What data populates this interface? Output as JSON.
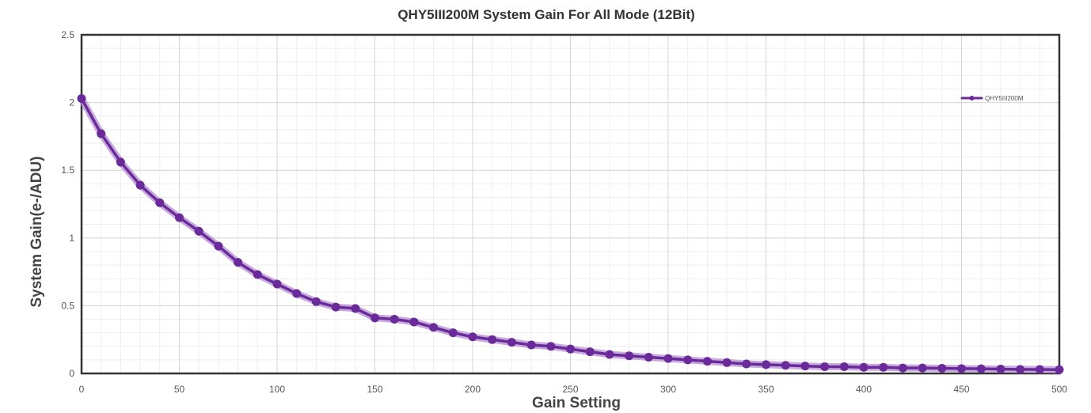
{
  "chart_data": {
    "type": "line",
    "title": "QHY5III200M System Gain For All Mode (12Bit)",
    "xlabel": "Gain Setting",
    "ylabel": "System Gain(e-/ADU)",
    "xlim": [
      0,
      500
    ],
    "ylim": [
      0,
      2.5
    ],
    "x_ticks": [
      0,
      50,
      100,
      150,
      200,
      250,
      300,
      350,
      400,
      450,
      500
    ],
    "y_ticks": [
      0,
      0.5,
      1,
      1.5,
      2,
      2.5
    ],
    "x_tick_labels": [
      "0",
      "50",
      "100",
      "150",
      "200",
      "250",
      "300",
      "350",
      "400",
      "450",
      "500"
    ],
    "y_tick_labels": [
      "0",
      "0.5",
      "1",
      "1.5",
      "2",
      "2.5"
    ],
    "grid": true,
    "legend_position": "top-right",
    "series": [
      {
        "name": "QHY5III200M",
        "color": "#6b2a9a",
        "x": [
          0,
          10,
          20,
          30,
          40,
          50,
          60,
          70,
          80,
          90,
          100,
          110,
          120,
          130,
          140,
          150,
          160,
          170,
          180,
          190,
          200,
          210,
          220,
          230,
          240,
          250,
          260,
          270,
          280,
          290,
          300,
          310,
          320,
          330,
          340,
          350,
          360,
          370,
          380,
          390,
          400,
          410,
          420,
          430,
          440,
          450,
          460,
          470,
          480,
          490,
          500
        ],
        "values": [
          2.03,
          1.77,
          1.56,
          1.39,
          1.26,
          1.15,
          1.05,
          0.94,
          0.82,
          0.73,
          0.66,
          0.59,
          0.53,
          0.49,
          0.48,
          0.41,
          0.4,
          0.38,
          0.34,
          0.3,
          0.27,
          0.25,
          0.23,
          0.21,
          0.2,
          0.18,
          0.16,
          0.14,
          0.13,
          0.12,
          0.11,
          0.1,
          0.09,
          0.08,
          0.07,
          0.065,
          0.06,
          0.055,
          0.05,
          0.05,
          0.045,
          0.045,
          0.04,
          0.04,
          0.038,
          0.036,
          0.034,
          0.032,
          0.03,
          0.029,
          0.028
        ]
      }
    ]
  }
}
